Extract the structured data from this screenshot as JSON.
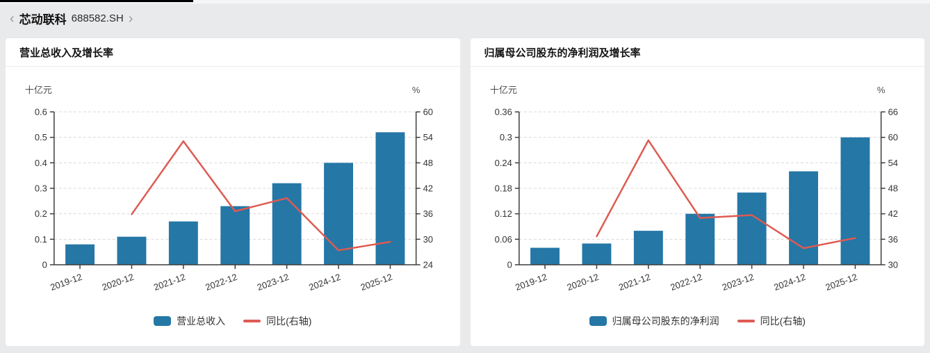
{
  "page": {
    "background": "#e9eaec",
    "card_background": "#ffffff",
    "top_bar_color": "#000000"
  },
  "header": {
    "back_icon": "‹",
    "forward_icon": "›",
    "stock_name": "芯动联科",
    "stock_code": "688582.SH"
  },
  "chart_data": [
    {
      "type": "bar+line",
      "title": "营业总收入及增长率",
      "categories": [
        "2019-12",
        "2020-12",
        "2021-12",
        "2022-12",
        "2023-12",
        "2024-12",
        "2025-12"
      ],
      "series": [
        {
          "type": "bar",
          "name": "营业总收入",
          "y_axis": "left",
          "color": "#2577a6",
          "values": [
            0.08,
            0.11,
            0.17,
            0.23,
            0.32,
            0.4,
            0.52
          ]
        },
        {
          "type": "line",
          "name": "同比(右轴)",
          "y_axis": "right",
          "color": "#dd5b52",
          "values": [
            null,
            35.9,
            53.1,
            36.6,
            39.7,
            27.4,
            29.4
          ]
        }
      ],
      "left_axis": {
        "label": "十亿元",
        "min": 0,
        "max": 0.6,
        "ticks": [
          "0",
          "0.1",
          "0.2",
          "0.3",
          "0.4",
          "0.5",
          "0.6"
        ]
      },
      "right_axis": {
        "label": "%",
        "min": 24,
        "max": 60,
        "ticks": [
          "24",
          "30",
          "36",
          "42",
          "48",
          "54",
          "60"
        ]
      },
      "grid": "horizontal-dashed",
      "legend_position": "bottom"
    },
    {
      "type": "bar+line",
      "title": "归属母公司股东的净利润及增长率",
      "categories": [
        "2019-12",
        "2020-12",
        "2021-12",
        "2022-12",
        "2023-12",
        "2024-12",
        "2025-12"
      ],
      "series": [
        {
          "type": "bar",
          "name": "归属母公司股东的净利润",
          "y_axis": "left",
          "color": "#2577a6",
          "values": [
            0.04,
            0.05,
            0.08,
            0.12,
            0.17,
            0.22,
            0.3
          ]
        },
        {
          "type": "line",
          "name": "同比(右轴)",
          "y_axis": "right",
          "color": "#dd5b52",
          "values": [
            null,
            36.7,
            59.3,
            41.0,
            41.7,
            33.9,
            36.3
          ]
        }
      ],
      "left_axis": {
        "label": "十亿元",
        "min": 0,
        "max": 0.36,
        "ticks": [
          "0",
          "0.06",
          "0.12",
          "0.18",
          "0.24",
          "0.3",
          "0.36"
        ]
      },
      "right_axis": {
        "label": "%",
        "min": 30,
        "max": 66,
        "ticks": [
          "30",
          "36",
          "42",
          "48",
          "54",
          "60",
          "66"
        ]
      },
      "grid": "horizontal-dashed",
      "legend_position": "bottom"
    }
  ]
}
